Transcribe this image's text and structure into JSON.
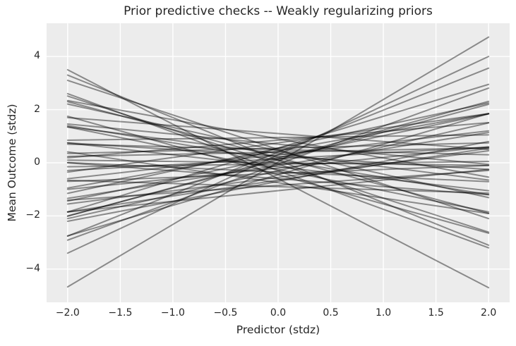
{
  "title": "Prior predictive checks -- Weakly regularizing priors",
  "xlabel": "Predictor (stdz)",
  "ylabel": "Mean Outcome (stdz)",
  "colors": {
    "figure_bg": "#FFFFFF",
    "plot_bg": "#ECECEC",
    "grid": "#FFFFFF",
    "line": "rgba(0,0,0,0.42)",
    "text": "#262626"
  },
  "chart_data": {
    "type": "line",
    "title": "Prior predictive checks -- Weakly regularizing priors",
    "xlabel": "Predictor (stdz)",
    "ylabel": "Mean Outcome (stdz)",
    "xlim": [
      -2.2,
      2.2
    ],
    "ylim": [
      -5.25,
      5.25
    ],
    "x_ticks": [
      -2.0,
      -1.5,
      -1.0,
      -0.5,
      0.0,
      0.5,
      1.0,
      1.5,
      2.0
    ],
    "y_ticks": [
      -4,
      -2,
      0,
      2,
      4
    ],
    "grid": true,
    "legend_position": "none",
    "line_x_range": [
      -2,
      2
    ],
    "line_width": 2,
    "description": "50 prior predictive draws of straight regression lines y = intercept + slope * x, plotted from x = -2 to x = 2 as translucent dark lines",
    "lines": [
      {
        "intercept": 0.03,
        "slope": 2.35
      },
      {
        "intercept": 0.3,
        "slope": 1.85
      },
      {
        "intercept": 0.4,
        "slope": 1.58
      },
      {
        "intercept": -0.05,
        "slope": 1.43
      },
      {
        "intercept": 0.15,
        "slope": 1.08
      },
      {
        "intercept": -0.45,
        "slope": 1.15
      },
      {
        "intercept": 0.1,
        "slope": 1.05
      },
      {
        "intercept": 0.55,
        "slope": 0.85
      },
      {
        "intercept": -0.3,
        "slope": 0.9
      },
      {
        "intercept": 0.2,
        "slope": 0.82
      },
      {
        "intercept": -0.7,
        "slope": 0.75
      },
      {
        "intercept": 0.45,
        "slope": 0.7
      },
      {
        "intercept": -0.1,
        "slope": 0.62
      },
      {
        "intercept": 0.75,
        "slope": 0.55
      },
      {
        "intercept": -0.55,
        "slope": 0.5
      },
      {
        "intercept": 0.3,
        "slope": 0.45
      },
      {
        "intercept": -0.2,
        "slope": 0.4
      },
      {
        "intercept": 0.85,
        "slope": 0.33
      },
      {
        "intercept": -0.85,
        "slope": 0.28
      },
      {
        "intercept": 0.15,
        "slope": 0.22
      },
      {
        "intercept": -0.4,
        "slope": 0.15
      },
      {
        "intercept": 0.55,
        "slope": 0.1
      },
      {
        "intercept": -0.05,
        "slope": 0.05
      },
      {
        "intercept": 0.4,
        "slope": 0.08
      },
      {
        "intercept": -0.65,
        "slope": 0.6
      },
      {
        "intercept": 0.55,
        "slope": 1.2
      },
      {
        "intercept": 0.0,
        "slope": -0.05
      },
      {
        "intercept": 0.5,
        "slope": -0.1
      },
      {
        "intercept": -0.35,
        "slope": -0.18
      },
      {
        "intercept": 0.25,
        "slope": -0.25
      },
      {
        "intercept": -0.6,
        "slope": -0.3
      },
      {
        "intercept": 0.7,
        "slope": -0.38
      },
      {
        "intercept": -0.15,
        "slope": -0.45
      },
      {
        "intercept": 0.35,
        "slope": -0.5
      },
      {
        "intercept": -0.75,
        "slope": -0.58
      },
      {
        "intercept": 0.1,
        "slope": -0.65
      },
      {
        "intercept": 0.9,
        "slope": -0.72
      },
      {
        "intercept": -0.25,
        "slope": -0.8
      },
      {
        "intercept": 0.45,
        "slope": -0.88
      },
      {
        "intercept": -0.45,
        "slope": -1.1
      },
      {
        "intercept": 0.2,
        "slope": -1.05
      },
      {
        "intercept": -0.05,
        "slope": -1.28
      },
      {
        "intercept": 0.5,
        "slope": -1.3
      },
      {
        "intercept": -0.3,
        "slope": -1.45
      },
      {
        "intercept": 0.1,
        "slope": -1.6
      },
      {
        "intercept": -0.6,
        "slope": -2.05
      },
      {
        "intercept": -0.9,
        "slope": -0.12
      },
      {
        "intercept": 0.95,
        "slope": 0.05
      },
      {
        "intercept": -1.05,
        "slope": 0.4
      },
      {
        "intercept": 1.1,
        "slope": -0.3
      }
    ]
  }
}
